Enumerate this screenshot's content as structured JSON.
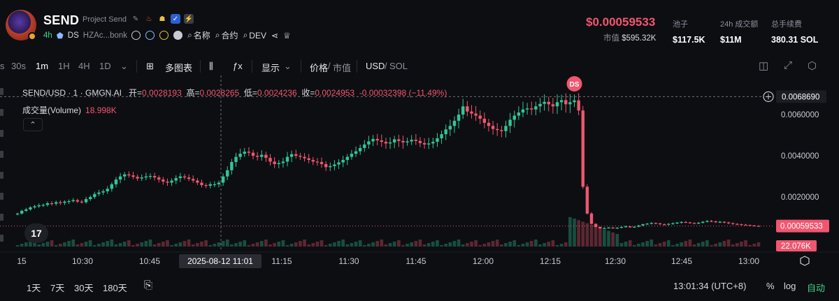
{
  "header": {
    "symbol": "SEND",
    "name": "Project Send",
    "age": "4h",
    "ds_label": "DS",
    "address": "HZAc...bonk",
    "links": [
      "名称",
      "合约",
      "DEV"
    ],
    "price": "$0.00059533",
    "mcap_label": "市值",
    "mcap_value": "$595.32K",
    "stats": [
      {
        "label": "池子",
        "value": "$117.5K"
      },
      {
        "label": "24h 成交额",
        "value": "$11M"
      },
      {
        "label": "总手续费",
        "value": "380.31 SOL"
      }
    ]
  },
  "toolbar": {
    "cut_left": "s",
    "intervals": [
      "30s",
      "1m",
      "1H",
      "4H",
      "1D"
    ],
    "active_interval": "1m",
    "indicators_label": "多图表",
    "display_label": "显示",
    "price_label": "价格",
    "mcap_label": "市值",
    "currency_usd": "USD",
    "currency_sol": "SOL"
  },
  "legend": {
    "pair": "SEND/USD · 1 · GMGN.AI",
    "open_label": "开=",
    "open": "0.0028193",
    "high_label": "高=",
    "high": "0.0028265",
    "low_label": "低=",
    "low": "0.0024236",
    "close_label": "收=",
    "close": "0.0024953",
    "change": "-0.00032398 (−11.49%)",
    "volume_label": "成交量(Volume)",
    "volume_value": "18.998K"
  },
  "chart_data": {
    "type": "candlestick",
    "x_ticks": [
      "15",
      "10:30",
      "10:45",
      "11:15",
      "11:30",
      "11:45",
      "12:00",
      "12:15",
      "12:30",
      "12:45",
      "13:00"
    ],
    "crosshair_time": "2025-08-12   11:01",
    "y_ticks": [
      "0.0060000",
      "0.0040000",
      "0.0020000"
    ],
    "ylim": [
      -0.0004,
      0.0079
    ],
    "crosshair_price": "0.0068690",
    "last_price": "0.00059533",
    "last_volume": "22.076K",
    "marker_label": "DS",
    "colors": {
      "up": "#2fc796",
      "down": "#f0566f"
    },
    "close_series": [
      0.0012,
      0.00133,
      0.0014,
      0.0015,
      0.00155,
      0.0016,
      0.00162,
      0.0017,
      0.00168,
      0.00175,
      0.00172,
      0.00178,
      0.0018,
      0.00185,
      0.00178,
      0.00175,
      0.0019,
      0.002,
      0.00215,
      0.00222,
      0.00228,
      0.0024,
      0.00262,
      0.00285,
      0.003,
      0.0031,
      0.00305,
      0.00298,
      0.0029,
      0.00295,
      0.003,
      0.00302,
      0.00295,
      0.00285,
      0.00275,
      0.0027,
      0.0028,
      0.00292,
      0.003,
      0.00295,
      0.00288,
      0.0028,
      0.0027,
      0.00258,
      0.00255,
      0.00262,
      0.00262,
      0.0027,
      0.003,
      0.0033,
      0.0037,
      0.00395,
      0.0041,
      0.0042,
      0.00415,
      0.004,
      0.00395,
      0.00405,
      0.0039,
      0.00372,
      0.0036,
      0.00365,
      0.00372,
      0.00395,
      0.00408,
      0.004,
      0.00395,
      0.00388,
      0.0038,
      0.00372,
      0.0037,
      0.0036,
      0.00345,
      0.0035,
      0.00358,
      0.00368,
      0.0038,
      0.00395,
      0.0041,
      0.00422,
      0.00438,
      0.00455,
      0.0047,
      0.00482,
      0.00475,
      0.00468,
      0.0046,
      0.00465,
      0.0048,
      0.00472,
      0.00465,
      0.0047,
      0.00478,
      0.00472,
      0.00462,
      0.00455,
      0.0046,
      0.00468,
      0.00485,
      0.00505,
      0.00528,
      0.00545,
      0.0057,
      0.006,
      0.0064,
      0.00615,
      0.00605,
      0.00595,
      0.0058,
      0.0056,
      0.00545,
      0.0053,
      0.00525,
      0.0052,
      0.00545,
      0.00575,
      0.00595,
      0.0061,
      0.00625,
      0.0063,
      0.00625,
      0.0064,
      0.00652,
      0.00662,
      0.0065,
      0.0064,
      0.0066,
      0.0067,
      0.0065,
      0.0066,
      0.00669,
      0.0062,
      0.0025,
      0.0012,
      0.0007,
      0.00055,
      0.00048,
      0.0005,
      0.00052,
      0.00049,
      0.00051,
      0.00055,
      0.00058,
      0.00053,
      0.00056,
      0.00062,
      0.00068,
      0.00071,
      0.00074,
      0.00072,
      0.00068,
      0.00066,
      0.0007,
      0.00073,
      0.00076,
      0.00079,
      0.00077,
      0.00074,
      0.00072,
      0.00075,
      0.0008,
      0.00084,
      0.00082,
      0.00078,
      0.0008,
      0.00077,
      0.00073,
      0.0007,
      0.00068,
      0.00066,
      0.00064,
      0.00062,
      0.0006,
      0.00059533
    ]
  },
  "footer": {
    "ranges": [
      "1天",
      "7天",
      "30天",
      "180天"
    ],
    "time": "13:01:34 (UTC+8)",
    "percent": "%",
    "log": "log",
    "auto": "自动"
  }
}
